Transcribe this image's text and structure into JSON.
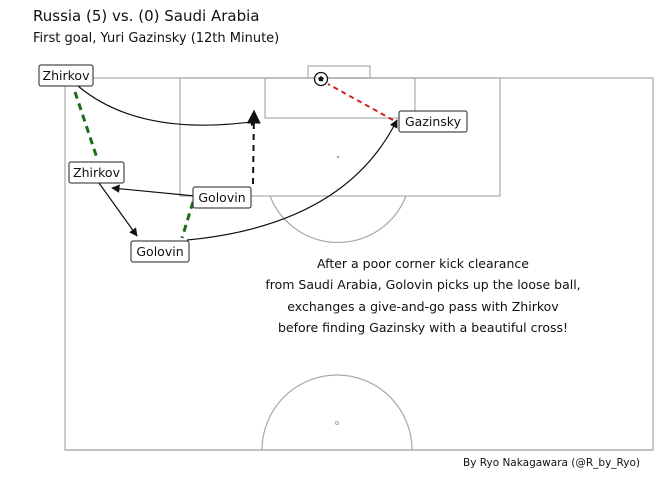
{
  "header": {
    "title": "Russia (5) vs. (0) Saudi Arabia",
    "subtitle": "First goal, Yuri Gazinsky (12th Minute)"
  },
  "players": {
    "zhirkov_1": "Zhirkov",
    "zhirkov_2": "Zhirkov",
    "golovin_1": "Golovin",
    "golovin_2": "Golovin",
    "gazinsky": "Gazinsky"
  },
  "description": {
    "line1": "After a poor corner kick clearance",
    "line2": "from Saudi Arabia, Golovin picks up the loose ball,",
    "line3": "exchanges a give-and-go pass with Zhirkov",
    "line4": "before finding Gazinsky with a beautiful cross!"
  },
  "credit": "By Ryo Nakagawara (@R_by_Ryo)",
  "colors": {
    "pitch_lines": "#a9a9a9",
    "pass": "#111111",
    "dribble": "#1a6e1a",
    "shot": "#d42020"
  },
  "icons": {
    "ball": "soccer-ball-icon"
  }
}
